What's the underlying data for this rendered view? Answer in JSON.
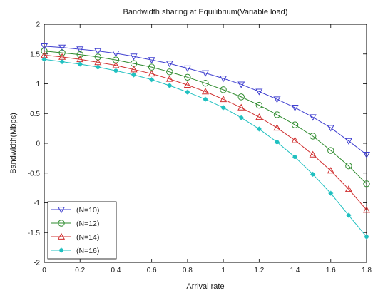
{
  "chart_data": {
    "type": "line",
    "title": "Bandwidth sharing at Equilibrium(Variable load)",
    "xlabel": "Arrival rate",
    "ylabel": "Bandwidth(Mbps)",
    "xlim": [
      0,
      1.8
    ],
    "ylim": [
      -2,
      2
    ],
    "xticks": [
      0,
      0.2,
      0.4,
      0.6,
      0.8,
      1,
      1.2,
      1.4,
      1.6,
      1.8
    ],
    "xtick_labels": [
      "0",
      "0.2",
      "0.4",
      "0.6",
      "0.8",
      "1",
      "1.2",
      "1.4",
      "1.6",
      "1.8"
    ],
    "yticks": [
      -2,
      -1.5,
      -1,
      -0.5,
      0,
      0.5,
      1,
      1.5,
      2
    ],
    "ytick_labels": [
      "-2",
      "-1.5",
      "-1",
      "-0.5",
      "0",
      "0.5",
      "1",
      "1.5",
      "2"
    ],
    "grid": false,
    "legend_position": "bottom-left",
    "x": [
      0,
      0.1,
      0.2,
      0.3,
      0.4,
      0.5,
      0.6,
      0.7,
      0.8,
      0.9,
      1.0,
      1.1,
      1.2,
      1.3,
      1.4,
      1.5,
      1.6,
      1.7,
      1.8
    ],
    "series": [
      {
        "name": "(N=10)",
        "color": "#4040d0",
        "marker": "triangle-down",
        "values": [
          1.63,
          1.61,
          1.58,
          1.55,
          1.51,
          1.46,
          1.4,
          1.34,
          1.26,
          1.18,
          1.09,
          0.99,
          0.87,
          0.74,
          0.6,
          0.44,
          0.26,
          0.04,
          -0.19
        ]
      },
      {
        "name": "(N=12)",
        "color": "#2e8b2e",
        "marker": "circle",
        "values": [
          1.55,
          1.52,
          1.49,
          1.45,
          1.4,
          1.34,
          1.28,
          1.2,
          1.11,
          1.01,
          0.9,
          0.78,
          0.64,
          0.48,
          0.31,
          0.12,
          -0.12,
          -0.38,
          -0.68
        ]
      },
      {
        "name": "(N=14)",
        "color": "#d03030",
        "marker": "triangle-up",
        "values": [
          1.48,
          1.45,
          1.41,
          1.36,
          1.31,
          1.24,
          1.17,
          1.08,
          0.98,
          0.87,
          0.74,
          0.6,
          0.44,
          0.26,
          0.05,
          -0.19,
          -0.46,
          -0.77,
          -1.12
        ]
      },
      {
        "name": "(N=16)",
        "color": "#20c0c0",
        "marker": "star",
        "values": [
          1.41,
          1.37,
          1.33,
          1.28,
          1.22,
          1.15,
          1.07,
          0.97,
          0.86,
          0.74,
          0.6,
          0.43,
          0.24,
          0.02,
          -0.23,
          -0.52,
          -0.84,
          -1.21,
          -1.57
        ]
      }
    ]
  }
}
